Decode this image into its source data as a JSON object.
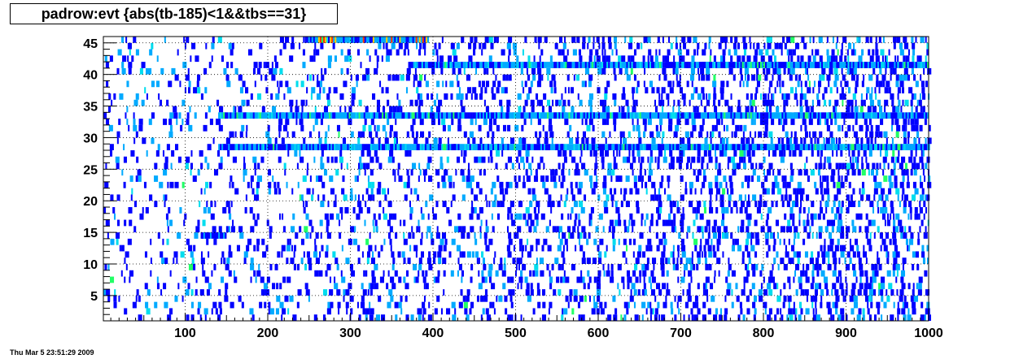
{
  "title": "padrow:evt {abs(tb-185)<1&&tbs==31}",
  "timestamp": "Thu Mar  5 23:51:29 2009",
  "chart_data": {
    "type": "heatmap",
    "title": "padrow:evt {abs(tb-185)<1&&tbs==31}",
    "xlabel": "",
    "ylabel": "",
    "xlim": [
      1,
      1000
    ],
    "ylim": [
      1,
      46
    ],
    "x_ticks": [
      100,
      200,
      300,
      400,
      500,
      600,
      700,
      800,
      900,
      1000
    ],
    "y_ticks": [
      5,
      10,
      15,
      20,
      25,
      30,
      35,
      40,
      45
    ],
    "grid": true,
    "color_scale": [
      "#0000ff",
      "#00aaff",
      "#00ddee",
      "#22ff66",
      "#ffcc00",
      "#ff3300"
    ],
    "dense_rows": [
      {
        "padrow": 45,
        "x_range": [
          245,
          395
        ],
        "level": 3
      },
      {
        "padrow": 41,
        "x_range": [
          370,
          1000
        ],
        "level": 2
      },
      {
        "padrow": 33,
        "x_range": [
          140,
          1000
        ],
        "level": 2
      },
      {
        "padrow": 28,
        "x_range": [
          140,
          1000
        ],
        "level": 2
      },
      {
        "padrow": 14,
        "x_range": [
          120,
          150
        ],
        "level": 1
      }
    ]
  }
}
